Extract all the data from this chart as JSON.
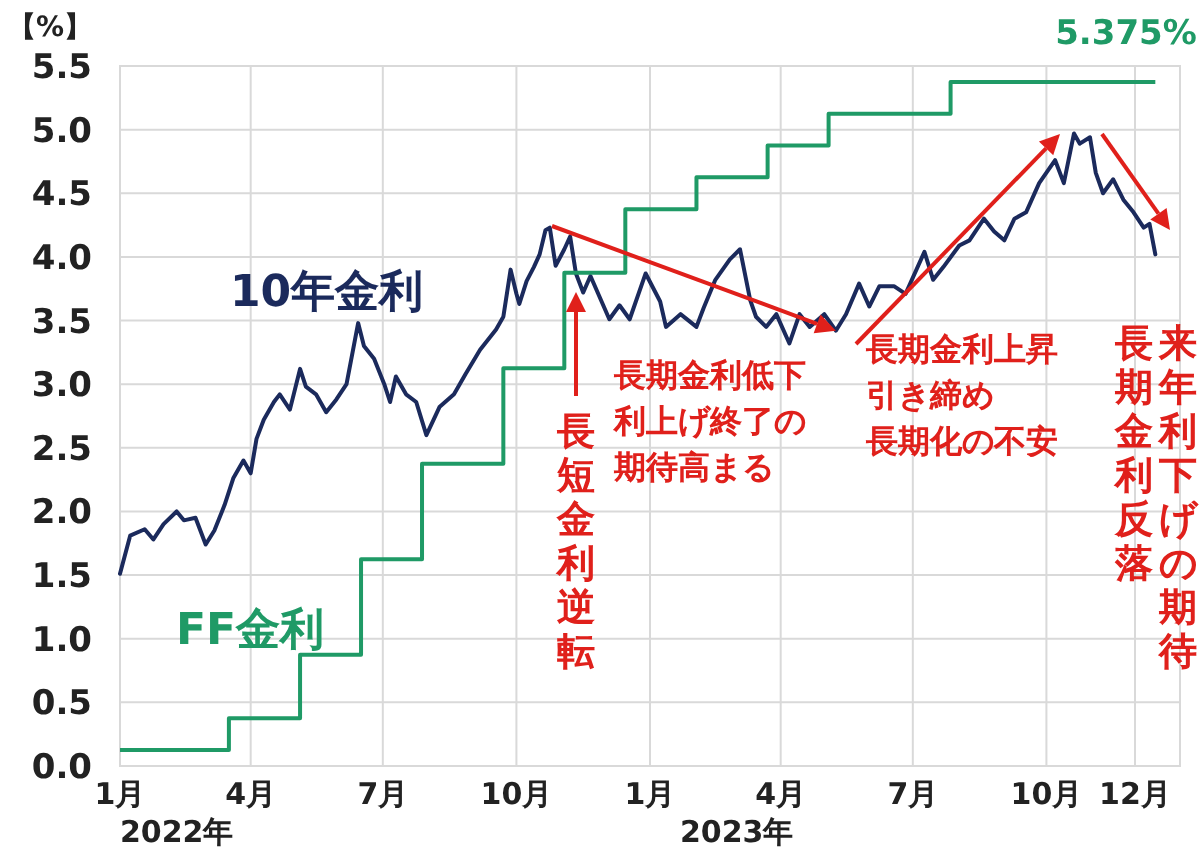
{
  "chart_data": {
    "type": "line",
    "ylabel": "【%】",
    "xlim": [
      "2022-01-01",
      "2024-01-01"
    ],
    "xticks": [
      {
        "value": "2022-01-01",
        "label": "1月"
      },
      {
        "value": "2022-04-01",
        "label": "4月"
      },
      {
        "value": "2022-07-01",
        "label": "7月"
      },
      {
        "value": "2022-10-01",
        "label": "10月"
      },
      {
        "value": "2023-01-01",
        "label": "1月"
      },
      {
        "value": "2023-04-01",
        "label": "4月"
      },
      {
        "value": "2023-07-01",
        "label": "7月"
      },
      {
        "value": "2023-10-01",
        "label": "10月"
      },
      {
        "value": "2023-12-01",
        "label": "12月"
      }
    ],
    "ylim": [
      0,
      5.5
    ],
    "yticks": [
      {
        "value": 0,
        "label": "0.0"
      },
      {
        "value": 0.5,
        "label": "0.5"
      },
      {
        "value": 1,
        "label": "1.0"
      },
      {
        "value": 1.5,
        "label": "1.5"
      },
      {
        "value": 2,
        "label": "2.0"
      },
      {
        "value": 2.5,
        "label": "2.5"
      },
      {
        "value": 3,
        "label": "3.0"
      },
      {
        "value": 3.5,
        "label": "3.5"
      },
      {
        "value": 4,
        "label": "4.0"
      },
      {
        "value": 4.5,
        "label": "4.5"
      },
      {
        "value": 5,
        "label": "5.0"
      },
      {
        "value": 5.5,
        "label": "5.5"
      }
    ],
    "grid": true,
    "series": [
      {
        "name": "10年金利",
        "type": "line",
        "color": "#1b2a5c",
        "x": [
          "2022-01-01",
          "2022-01-08",
          "2022-01-18",
          "2022-01-24",
          "2022-01-31",
          "2022-02-09",
          "2022-02-14",
          "2022-02-22",
          "2022-03-01",
          "2022-03-07",
          "2022-03-14",
          "2022-03-20",
          "2022-03-27",
          "2022-04-01",
          "2022-04-05",
          "2022-04-10",
          "2022-04-17",
          "2022-04-21",
          "2022-04-28",
          "2022-05-05",
          "2022-05-09",
          "2022-05-16",
          "2022-05-23",
          "2022-05-30",
          "2022-06-06",
          "2022-06-14",
          "2022-06-18",
          "2022-06-25",
          "2022-07-02",
          "2022-07-06",
          "2022-07-10",
          "2022-07-17",
          "2022-07-24",
          "2022-07-31",
          "2022-08-09",
          "2022-08-19",
          "2022-08-27",
          "2022-09-06",
          "2022-09-17",
          "2022-09-22",
          "2022-09-27",
          "2022-10-01",
          "2022-10-03",
          "2022-10-08",
          "2022-10-13",
          "2022-10-17",
          "2022-10-21",
          "2022-10-24",
          "2022-10-28",
          "2022-11-03",
          "2022-11-07",
          "2022-11-11",
          "2022-11-16",
          "2022-11-21",
          "2022-12-04",
          "2022-12-11",
          "2022-12-18",
          "2022-12-29",
          "2023-01-08",
          "2023-01-12",
          "2023-01-22",
          "2023-02-02",
          "2023-02-07",
          "2023-02-15",
          "2023-02-25",
          "2023-03-04",
          "2023-03-11",
          "2023-03-15",
          "2023-03-22",
          "2023-03-29",
          "2023-04-07",
          "2023-04-14",
          "2023-04-21",
          "2023-05-01",
          "2023-05-09",
          "2023-05-16",
          "2023-05-25",
          "2023-06-01",
          "2023-06-08",
          "2023-06-18",
          "2023-06-26",
          "2023-07-09",
          "2023-07-15",
          "2023-07-22",
          "2023-08-02",
          "2023-08-09",
          "2023-08-19",
          "2023-08-26",
          "2023-09-02",
          "2023-09-09",
          "2023-09-17",
          "2023-09-26",
          "2023-10-07",
          "2023-10-13",
          "2023-10-20",
          "2023-10-24",
          "2023-10-31",
          "2023-11-04",
          "2023-11-09",
          "2023-11-16",
          "2023-11-23",
          "2023-11-30",
          "2023-12-07",
          "2023-12-11",
          "2023-12-15"
        ],
        "values": [
          1.51,
          1.81,
          1.86,
          1.78,
          1.9,
          2.0,
          1.93,
          1.95,
          1.74,
          1.85,
          2.05,
          2.26,
          2.4,
          2.3,
          2.57,
          2.72,
          2.86,
          2.92,
          2.8,
          3.12,
          2.98,
          2.92,
          2.78,
          2.88,
          3.0,
          3.48,
          3.3,
          3.2,
          3.0,
          2.86,
          3.06,
          2.92,
          2.86,
          2.6,
          2.82,
          2.92,
          3.08,
          3.27,
          3.43,
          3.53,
          3.9,
          3.71,
          3.63,
          3.81,
          3.92,
          4.02,
          4.21,
          4.23,
          3.93,
          4.06,
          4.16,
          3.87,
          3.72,
          3.85,
          3.51,
          3.62,
          3.51,
          3.87,
          3.65,
          3.45,
          3.55,
          3.45,
          3.6,
          3.82,
          3.98,
          4.06,
          3.66,
          3.53,
          3.45,
          3.55,
          3.32,
          3.55,
          3.45,
          3.55,
          3.42,
          3.55,
          3.79,
          3.61,
          3.77,
          3.77,
          3.71,
          4.04,
          3.82,
          3.92,
          4.09,
          4.13,
          4.3,
          4.2,
          4.13,
          4.3,
          4.35,
          4.58,
          4.76,
          4.58,
          4.97,
          4.89,
          4.94,
          4.66,
          4.5,
          4.61,
          4.45,
          4.35,
          4.23,
          4.26,
          4.02
        ]
      },
      {
        "name": "FF金利",
        "type": "step",
        "color": "#1f9a66",
        "x": [
          "2022-01-01",
          "2022-03-17",
          "2022-05-05",
          "2022-06-16",
          "2022-07-28",
          "2022-09-22",
          "2022-11-03",
          "2022-12-15",
          "2023-02-02",
          "2023-03-23",
          "2023-05-04",
          "2023-07-27",
          "2023-12-15"
        ],
        "values": [
          0.125,
          0.375,
          0.875,
          1.625,
          2.375,
          3.125,
          3.875,
          4.375,
          4.625,
          4.875,
          5.125,
          5.375,
          5.375
        ]
      }
    ],
    "annotations": [
      "5.375%",
      "長短金利逆転",
      {
        "text": "長期金利低下利上げ終了の期待高まる",
        "x": "2023-05-09",
        "y": 3.42
      },
      "長期金利上昇引き締め長期化の不安",
      "来年利下げの期待",
      "長期金利反落",
      "2022年",
      "2023年"
    ]
  }
}
